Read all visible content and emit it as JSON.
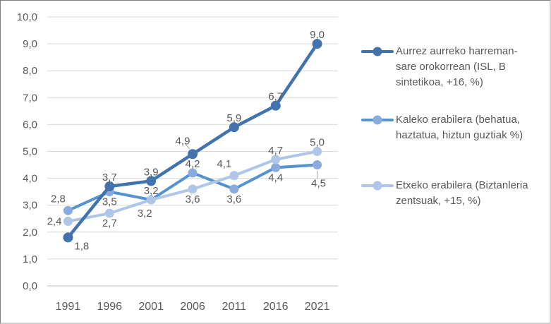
{
  "chart_data": {
    "type": "line",
    "title": "",
    "xlabel": "",
    "ylabel": "",
    "categories": [
      "1991",
      "1996",
      "2001",
      "2006",
      "2011",
      "2016",
      "2021"
    ],
    "y_axis": {
      "min": 0,
      "max": 10,
      "step": 1,
      "tick_labels": [
        "0,0",
        "1,0",
        "2,0",
        "3,0",
        "4,0",
        "5,0",
        "6,0",
        "7,0",
        "8,0",
        "9,0",
        "10,0"
      ]
    },
    "decimal_separator": ",",
    "grid": true,
    "legend_position": "right",
    "draw_order": [
      1,
      2,
      0
    ],
    "series": [
      {
        "name": "Aurrez aurreko harreman-sare orokorrean (ISL, B sintetikoa, +16, %)",
        "values": [
          1.8,
          3.7,
          3.9,
          4.9,
          5.9,
          6.7,
          9.0
        ],
        "data_labels": [
          "1,8",
          "3,7",
          "3,9",
          "4,9",
          "5,9",
          "6,7",
          "9,0"
        ],
        "line_color": "#4273AE",
        "marker_color": "#4273AE",
        "label_positions": [
          "below-right",
          "above",
          "above",
          "above-left-leader",
          "above",
          "above",
          "above"
        ]
      },
      {
        "name": "Kaleko erabilera (behatua, haztatua, hiztun guztiak %)",
        "values": [
          2.8,
          3.5,
          3.2,
          4.2,
          3.6,
          4.4,
          4.5
        ],
        "data_labels": [
          "2,8",
          "3,5",
          "3,2",
          "4,2",
          "3,6",
          "4,4",
          "4,5"
        ],
        "line_color": "#5593D0",
        "marker_color": "#8AABDD",
        "label_positions": [
          "above-left",
          "below",
          "above",
          "above",
          "below",
          "below",
          "below-leader"
        ]
      },
      {
        "name": "Etxeko erabilera (Biztanleria zentsuak, +15, %)",
        "values": [
          2.4,
          2.7,
          3.2,
          3.6,
          4.1,
          4.7,
          5.0
        ],
        "data_labels": [
          "2,4",
          "2,7",
          "3,2",
          "3,6",
          "4,1",
          "4,7",
          "5,0"
        ],
        "line_color": "#AEC7E9",
        "marker_color": "#AEC7E9",
        "label_positions": [
          "left",
          "below",
          "below-left",
          "below",
          "above-left",
          "above",
          "above"
        ]
      }
    ]
  },
  "colors": {
    "background": "#FFFFFF",
    "gridline": "#D9D9D9",
    "axis_line": "#BFBFBF",
    "text": "#595959",
    "leader_line": "#A6A6A6",
    "frame_border_dark": "#7F7F7F",
    "frame_border_light": "#D2D2D2"
  }
}
